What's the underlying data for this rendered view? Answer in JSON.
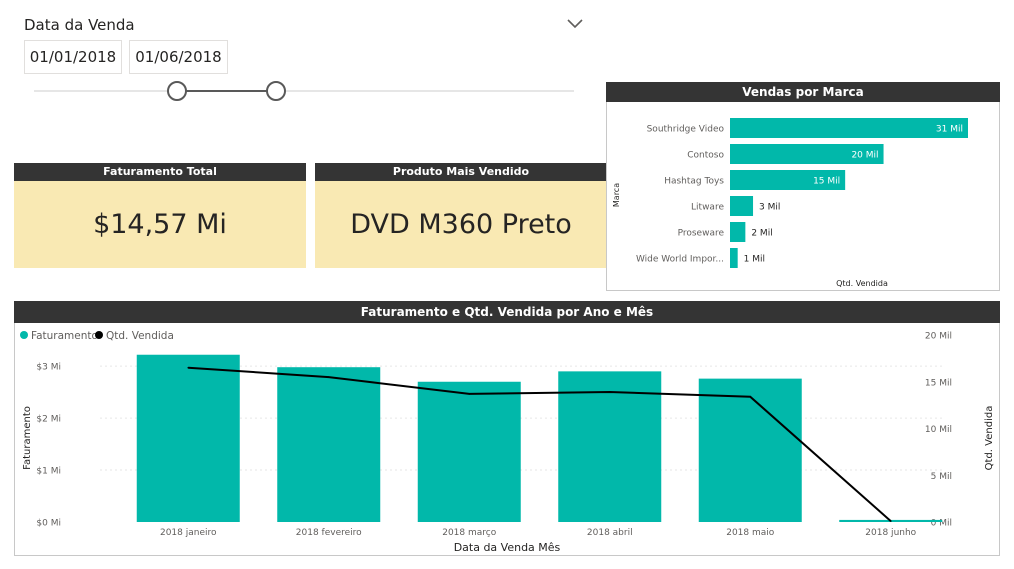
{
  "slicer": {
    "title": "Data da Venda",
    "start_date": "01/01/2018",
    "end_date": "01/06/2018"
  },
  "cards": {
    "faturamento": {
      "title": "Faturamento Total",
      "value": "$14,57 Mi"
    },
    "produto": {
      "title": "Produto Mais Vendido",
      "value": "DVD M360 Preto"
    }
  },
  "colors": {
    "teal": "#01b8aa",
    "line": "#000000",
    "header": "#343434",
    "card": "#f9e9b3"
  },
  "chart_data": [
    {
      "type": "bar",
      "orientation": "horizontal",
      "title": "Vendas por Marca",
      "xlabel": "Qtd. Vendida",
      "ylabel": "Marca",
      "categories": [
        "Southridge Video",
        "Contoso",
        "Hashtag Toys",
        "Litware",
        "Proseware",
        "Wide World Impor..."
      ],
      "values": [
        31,
        20,
        15,
        3,
        2,
        1
      ],
      "data_labels": [
        "31 Mil",
        "20 Mil",
        "15 Mil",
        "3 Mil",
        "2 Mil",
        "1 Mil"
      ],
      "grid": false
    },
    {
      "type": "bar",
      "combo": "bar+line",
      "title": "Faturamento e Qtd. Vendida por Ano e Mês",
      "xlabel": "Data da Venda Mês",
      "ylabel": "Faturamento",
      "y2label": "Qtd. Vendida",
      "legend_position": "top-left",
      "categories": [
        "2018 janeiro",
        "2018 fevereiro",
        "2018 março",
        "2018 abril",
        "2018 maio",
        "2018 junho"
      ],
      "series": [
        {
          "name": "Faturamento",
          "type": "bar",
          "axis": "left",
          "values": [
            3.22,
            2.98,
            2.7,
            2.9,
            2.76,
            0.04
          ]
        },
        {
          "name": "Qtd. Vendida",
          "type": "line",
          "axis": "right",
          "values": [
            16.5,
            15.5,
            13.7,
            13.9,
            13.4,
            0.1
          ]
        }
      ],
      "ylim": [
        0,
        3.6
      ],
      "y2lim": [
        0,
        20
      ],
      "yticks": [
        "$0 Mi",
        "$1 Mi",
        "$2 Mi",
        "$3 Mi"
      ],
      "y2ticks": [
        "0 Mil",
        "5 Mil",
        "10 Mil",
        "15 Mil",
        "20 Mil"
      ],
      "grid": true
    }
  ]
}
